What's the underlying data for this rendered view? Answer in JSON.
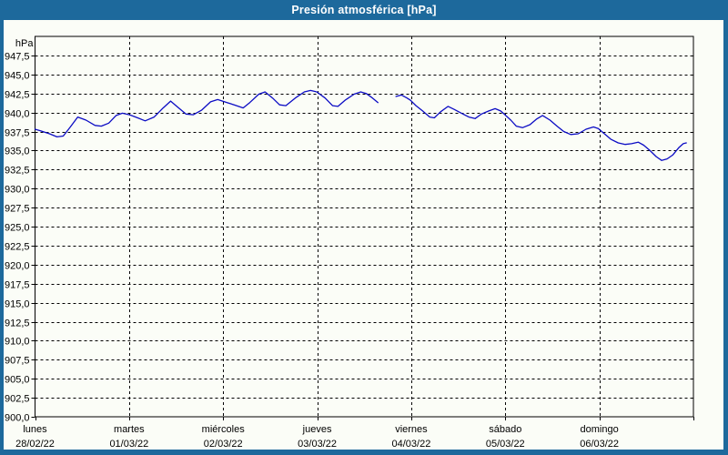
{
  "title": "Presión atmosférica [hPa]",
  "colors": {
    "window_frame": "#1d699c",
    "panel_background": "#fbfdf7",
    "grid": "#000000",
    "axis_text": "#000000",
    "title_text": "#ffffff",
    "line": "#0b0bc4"
  },
  "chart_data": {
    "type": "line",
    "title": "Presión atmosférica [hPa]",
    "unit_label": "hPa",
    "ylim": [
      900.0,
      950.0
    ],
    "ytick_step": 2.5,
    "yticks": [
      {
        "v": 947.5,
        "label": "947,5"
      },
      {
        "v": 945.0,
        "label": "945,0"
      },
      {
        "v": 942.5,
        "label": "942,5"
      },
      {
        "v": 940.0,
        "label": "940,0"
      },
      {
        "v": 937.5,
        "label": "937,5"
      },
      {
        "v": 935.0,
        "label": "935,0"
      },
      {
        "v": 932.5,
        "label": "932,5"
      },
      {
        "v": 930.0,
        "label": "930,0"
      },
      {
        "v": 927.5,
        "label": "927,5"
      },
      {
        "v": 925.0,
        "label": "925,0"
      },
      {
        "v": 922.5,
        "label": "922,5"
      },
      {
        "v": 920.0,
        "label": "920,0"
      },
      {
        "v": 917.5,
        "label": "917,5"
      },
      {
        "v": 915.0,
        "label": "915,0"
      },
      {
        "v": 912.5,
        "label": "912,5"
      },
      {
        "v": 910.0,
        "label": "910,0"
      },
      {
        "v": 907.5,
        "label": "907,5"
      },
      {
        "v": 905.0,
        "label": "905,0"
      },
      {
        "v": 902.5,
        "label": "902,5"
      },
      {
        "v": 900.0,
        "label": "900,0"
      }
    ],
    "x_range_hours": [
      0,
      168
    ],
    "hours_per_day": 24,
    "days": [
      {
        "name": "lunes",
        "date": "28/02/22"
      },
      {
        "name": "martes",
        "date": "01/03/22"
      },
      {
        "name": "miércoles",
        "date": "02/03/22"
      },
      {
        "name": "jueves",
        "date": "03/03/22"
      },
      {
        "name": "viernes",
        "date": "04/03/22"
      },
      {
        "name": "sábado",
        "date": "05/03/22"
      },
      {
        "name": "domingo",
        "date": "06/03/22"
      }
    ],
    "grid_style": "dashed",
    "legend": "none",
    "series": [
      {
        "name": "Presión atmosférica",
        "color": "#0b0bc4",
        "segments": [
          {
            "points": [
              [
                0,
                937.8
              ],
              [
                1.4,
                937.6
              ],
              [
                3.7,
                937.2
              ],
              [
                5.6,
                936.8
              ],
              [
                7.2,
                936.9
              ],
              [
                9,
                938.1
              ],
              [
                10.9,
                939.4
              ],
              [
                13,
                939.0
              ],
              [
                15.3,
                938.3
              ],
              [
                16.9,
                938.2
              ],
              [
                18.8,
                938.6
              ],
              [
                20.7,
                939.6
              ],
              [
                22.3,
                939.9
              ],
              [
                24.1,
                939.7
              ],
              [
                26.2,
                939.3
              ],
              [
                28.1,
                938.9
              ],
              [
                30.4,
                939.4
              ],
              [
                32.7,
                940.6
              ],
              [
                34.6,
                941.5
              ],
              [
                36.4,
                940.7
              ],
              [
                38.5,
                939.8
              ],
              [
                40.4,
                939.7
              ],
              [
                42.5,
                940.3
              ],
              [
                44.8,
                941.4
              ],
              [
                46.6,
                941.7
              ],
              [
                49,
                941.3
              ],
              [
                50.8,
                941.0
              ],
              [
                53.1,
                940.6
              ],
              [
                54.8,
                941.3
              ],
              [
                57.1,
                942.4
              ],
              [
                58.7,
                942.7
              ],
              [
                60.6,
                941.9
              ],
              [
                62.4,
                941.0
              ],
              [
                64,
                940.9
              ],
              [
                66.4,
                941.9
              ],
              [
                68.7,
                942.7
              ],
              [
                70.3,
                942.9
              ],
              [
                71.9,
                942.7
              ],
              [
                74,
                941.9
              ],
              [
                75.9,
                940.9
              ],
              [
                77.3,
                940.8
              ],
              [
                79.1,
                941.6
              ],
              [
                81.4,
                942.4
              ],
              [
                83.1,
                942.7
              ],
              [
                84.5,
                942.5
              ],
              [
                86.1,
                941.9
              ],
              [
                87.5,
                941.3
              ]
            ]
          },
          {
            "points": [
              [
                92.1,
                942.1
              ],
              [
                93.5,
                942.3
              ],
              [
                94.9,
                941.9
              ],
              [
                95.8,
                941.6
              ],
              [
                97.2,
                940.9
              ],
              [
                98.9,
                940.2
              ],
              [
                100.7,
                939.4
              ],
              [
                101.9,
                939.3
              ],
              [
                103.5,
                940.1
              ],
              [
                105.4,
                940.8
              ],
              [
                107,
                940.4
              ],
              [
                108.8,
                939.9
              ],
              [
                110.7,
                939.4
              ],
              [
                112.3,
                939.2
              ],
              [
                113.9,
                939.8
              ],
              [
                115.8,
                940.2
              ],
              [
                117.4,
                940.5
              ],
              [
                118.8,
                940.2
              ],
              [
                119.7,
                939.8
              ],
              [
                121.4,
                939.0
              ],
              [
                122.8,
                938.2
              ],
              [
                124.4,
                938.0
              ],
              [
                126.3,
                938.4
              ],
              [
                127.9,
                939.1
              ],
              [
                129.5,
                939.6
              ],
              [
                131.4,
                939.0
              ],
              [
                133.2,
                938.2
              ],
              [
                134.9,
                937.5
              ],
              [
                136.7,
                937.1
              ],
              [
                138.6,
                937.2
              ],
              [
                140.6,
                937.8
              ],
              [
                142.5,
                938.1
              ],
              [
                143.7,
                937.9
              ],
              [
                145.3,
                937.2
              ],
              [
                146.9,
                936.5
              ],
              [
                148.8,
                936.0
              ],
              [
                150.6,
                935.8
              ],
              [
                152.2,
                935.9
              ],
              [
                153.9,
                936.1
              ],
              [
                155.3,
                935.7
              ],
              [
                156.9,
                935.0
              ],
              [
                158.5,
                934.2
              ],
              [
                159.9,
                933.7
              ],
              [
                161.3,
                933.9
              ],
              [
                162.7,
                934.4
              ],
              [
                164.3,
                935.4
              ],
              [
                165.4,
                935.9
              ],
              [
                166.2,
                936.0
              ]
            ]
          }
        ]
      }
    ]
  }
}
